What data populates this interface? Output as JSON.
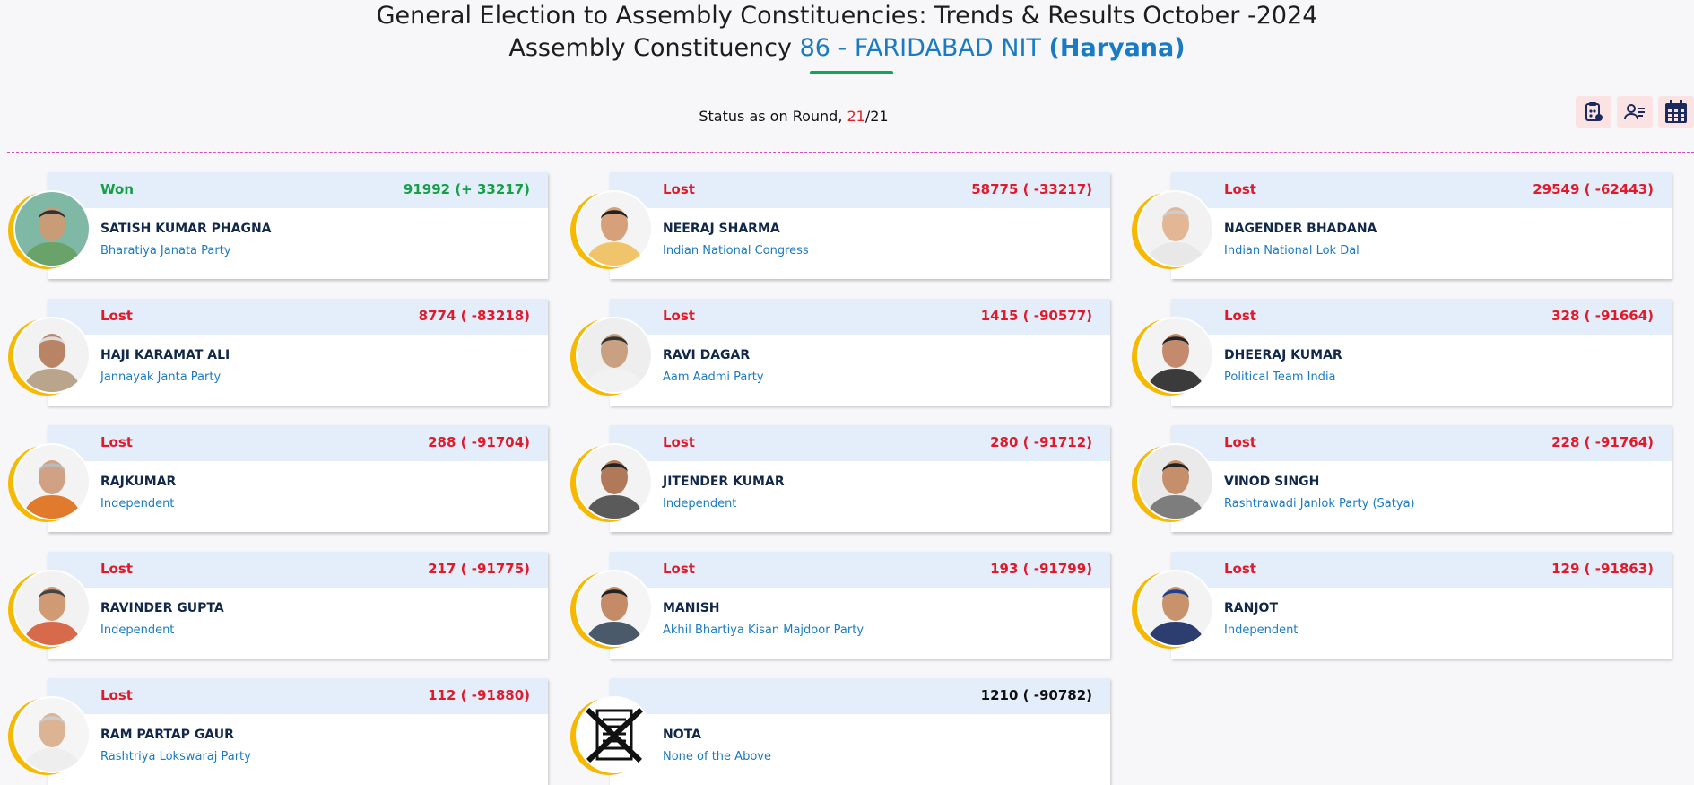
{
  "header": {
    "title_line1": "General Election to Assembly Constituencies: Trends & Results October -2024",
    "title_prefix": "Assembly Constituency",
    "constituency": "86 - FARIDABAD NIT",
    "state": "(Haryana)"
  },
  "status": {
    "label": "Status as on Round,",
    "current_round": "21",
    "separator": "/",
    "total_rounds": "21"
  },
  "toolbar": {
    "icons": [
      "calculator-icon",
      "user-list-icon",
      "calendar-table-icon"
    ]
  },
  "colors": {
    "won": "#16a046",
    "lost": "#e11a2b",
    "accent_blue": "#1b7bc2",
    "avatar_ring": "#f6b800",
    "card_header": "#e3eefa"
  },
  "candidates": [
    {
      "status": "Won",
      "votes": "91992 (+ 33217)",
      "name": "SATISH KUMAR PHAGNA",
      "party": "Bharatiya Janata Party"
    },
    {
      "status": "Lost",
      "votes": "58775 ( -33217)",
      "name": "NEERAJ SHARMA",
      "party": "Indian National Congress"
    },
    {
      "status": "Lost",
      "votes": "29549 ( -62443)",
      "name": "NAGENDER BHADANA",
      "party": "Indian National Lok Dal"
    },
    {
      "status": "Lost",
      "votes": "8774 ( -83218)",
      "name": "HAJI KARAMAT ALI",
      "party": "Jannayak Janta Party"
    },
    {
      "status": "Lost",
      "votes": "1415 ( -90577)",
      "name": "RAVI DAGAR",
      "party": "Aam Aadmi Party"
    },
    {
      "status": "Lost",
      "votes": "328 ( -91664)",
      "name": "DHEERAJ KUMAR",
      "party": "Political Team India"
    },
    {
      "status": "Lost",
      "votes": "288 ( -91704)",
      "name": "RAJKUMAR",
      "party": "Independent"
    },
    {
      "status": "Lost",
      "votes": "280 ( -91712)",
      "name": "JITENDER KUMAR",
      "party": "Independent"
    },
    {
      "status": "Lost",
      "votes": "228 ( -91764)",
      "name": "VINOD SINGH",
      "party": "Rashtrawadi Janlok Party (Satya)"
    },
    {
      "status": "Lost",
      "votes": "217 ( -91775)",
      "name": "RAVINDER GUPTA",
      "party": "Independent"
    },
    {
      "status": "Lost",
      "votes": "193 ( -91799)",
      "name": "MANISH",
      "party": "Akhil Bhartiya Kisan Majdoor Party"
    },
    {
      "status": "Lost",
      "votes": "129 ( -91863)",
      "name": "RANJOT",
      "party": "Independent"
    },
    {
      "status": "Lost",
      "votes": "112 ( -91880)",
      "name": "RAM PARTAP GAUR",
      "party": "Rashtriya Lokswaraj Party"
    },
    {
      "status": "",
      "votes": "1210 ( -90782)",
      "name": "NOTA",
      "party": "None of the Above"
    }
  ]
}
